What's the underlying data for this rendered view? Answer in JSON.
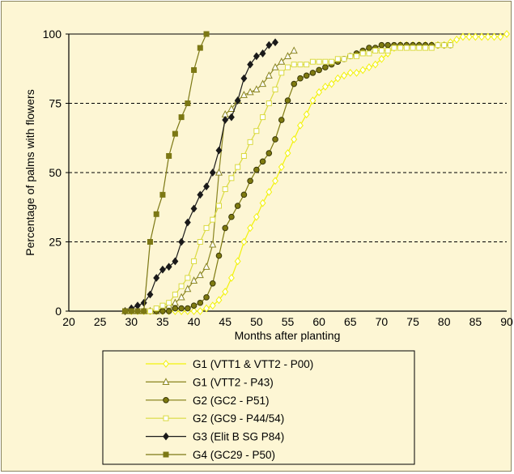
{
  "chart_data": {
    "type": "line",
    "title": "",
    "xlabel": "Months after planting",
    "ylabel": "Percentage of palms with flowers",
    "xlim": [
      20,
      90
    ],
    "ylim": [
      0,
      100
    ],
    "xticks": [
      20,
      25,
      30,
      35,
      40,
      45,
      50,
      55,
      60,
      65,
      70,
      75,
      80,
      85,
      90
    ],
    "yticks": [
      0,
      25,
      50,
      75,
      100
    ],
    "grid": "horizontal dashed at 25, 50, 75",
    "legend_placement": "bottom",
    "series": [
      {
        "name": "G1 (VTT1 & VTT2 - P00)",
        "color": "#f2f20a",
        "marker": "diamond-open",
        "x": [
          29,
          30,
          31,
          32,
          33,
          34,
          35,
          36,
          37,
          38,
          39,
          40,
          41,
          42,
          43,
          44,
          45,
          46,
          47,
          48,
          49,
          50,
          51,
          52,
          53,
          54,
          55,
          56,
          57,
          58,
          59,
          60,
          61,
          62,
          63,
          64,
          65,
          66,
          67,
          68,
          69,
          70,
          71,
          72,
          73,
          74,
          75,
          76,
          77,
          78,
          79,
          80,
          81,
          82,
          83,
          84,
          85,
          86,
          87,
          88,
          89,
          90
        ],
        "y": [
          0,
          0,
          0,
          0,
          0,
          0,
          0,
          0,
          0,
          0,
          0,
          0,
          0,
          1,
          2,
          4,
          7,
          12,
          18,
          25,
          30,
          34,
          39,
          43,
          47,
          52,
          57,
          62,
          67,
          71,
          76,
          79,
          81,
          82,
          84,
          85,
          86,
          86,
          87,
          88,
          89,
          91,
          93,
          95,
          96,
          96,
          96,
          96,
          96,
          96,
          96,
          96,
          97,
          98,
          99,
          99,
          99,
          99,
          99,
          99,
          99,
          100
        ]
      },
      {
        "name": "G1 (VTT2 - P43)",
        "color": "#8a8520",
        "marker": "triangle-open",
        "x": [
          29,
          30,
          31,
          32,
          33,
          34,
          35,
          36,
          37,
          38,
          39,
          40,
          41,
          42,
          43,
          44,
          45,
          46,
          47,
          48,
          49,
          50,
          51,
          52,
          53,
          54,
          55,
          56
        ],
        "y": [
          0,
          0,
          0,
          0,
          0,
          0,
          1,
          2,
          3,
          5,
          8,
          11,
          13,
          16,
          24,
          50,
          71,
          73,
          76,
          78,
          79,
          80,
          82,
          85,
          88,
          90,
          92,
          94
        ]
      },
      {
        "name": "G2 (GC2 - P51)",
        "color": "#7e7a10",
        "marker": "circle-filled",
        "x": [
          29,
          30,
          31,
          32,
          33,
          34,
          35,
          36,
          37,
          38,
          39,
          40,
          41,
          42,
          43,
          44,
          45,
          46,
          47,
          48,
          49,
          50,
          51,
          52,
          53,
          54,
          55,
          56,
          57,
          58,
          59,
          60,
          61,
          62,
          63,
          64,
          65,
          66,
          67,
          68,
          69,
          70,
          71,
          72,
          73,
          74,
          75,
          76,
          77,
          78,
          79,
          80,
          81
        ],
        "y": [
          0,
          0,
          0,
          0,
          0,
          0,
          0,
          0,
          1,
          1,
          1,
          2,
          3,
          5,
          10,
          20,
          30,
          34,
          38,
          42,
          47,
          51,
          54,
          57,
          62,
          69,
          76,
          82,
          84,
          85,
          86,
          87,
          88,
          89,
          90,
          91,
          92,
          93,
          94,
          95,
          95,
          96,
          96,
          96,
          96,
          96,
          96,
          96,
          96,
          96,
          96,
          96,
          96
        ]
      },
      {
        "name": "G2 (GC9 - P44/54)",
        "color": "#dada40",
        "marker": "square-open",
        "x": [
          29,
          30,
          31,
          32,
          33,
          34,
          35,
          36,
          37,
          38,
          39,
          40,
          41,
          42,
          43,
          44,
          45,
          46,
          47,
          48,
          49,
          50,
          51,
          52,
          53,
          54,
          55,
          56,
          57,
          58,
          59,
          60,
          61,
          62,
          63,
          64,
          65,
          66,
          67,
          68,
          69,
          70,
          71,
          72,
          73,
          74,
          75,
          76,
          77,
          78,
          79,
          80,
          81
        ],
        "y": [
          0,
          0,
          0,
          0,
          0,
          1,
          2,
          3,
          6,
          9,
          12,
          18,
          25,
          30,
          33,
          38,
          44,
          48,
          52,
          56,
          61,
          65,
          70,
          75,
          80,
          86,
          88,
          89,
          89,
          89,
          90,
          90,
          90,
          90,
          91,
          91,
          92,
          92,
          93,
          93,
          94,
          94,
          94,
          95,
          95,
          95,
          95,
          95,
          95,
          95,
          96,
          96,
          96
        ]
      },
      {
        "name": "G3 (Elit B SG P84)",
        "color": "#1a1a1a",
        "marker": "diamond-filled",
        "x": [
          29,
          30,
          31,
          32,
          33,
          34,
          35,
          36,
          37,
          38,
          39,
          40,
          41,
          42,
          43,
          44,
          45,
          46,
          47,
          48,
          49,
          50,
          51,
          52,
          53
        ],
        "y": [
          0,
          1,
          2,
          3,
          6,
          12,
          15,
          16,
          18,
          25,
          32,
          37,
          42,
          45,
          50,
          58,
          69,
          70,
          76,
          84,
          89,
          92,
          93,
          96,
          97
        ]
      },
      {
        "name": "G4 (GC29 - P50)",
        "color": "#7c7814",
        "marker": "square-filled",
        "x": [
          29,
          30,
          31,
          32,
          33,
          34,
          35,
          36,
          37,
          38,
          39,
          40,
          41,
          42
        ],
        "y": [
          0,
          0,
          0,
          0,
          25,
          35,
          42,
          56,
          64,
          70,
          75,
          87,
          95,
          100
        ]
      }
    ]
  }
}
